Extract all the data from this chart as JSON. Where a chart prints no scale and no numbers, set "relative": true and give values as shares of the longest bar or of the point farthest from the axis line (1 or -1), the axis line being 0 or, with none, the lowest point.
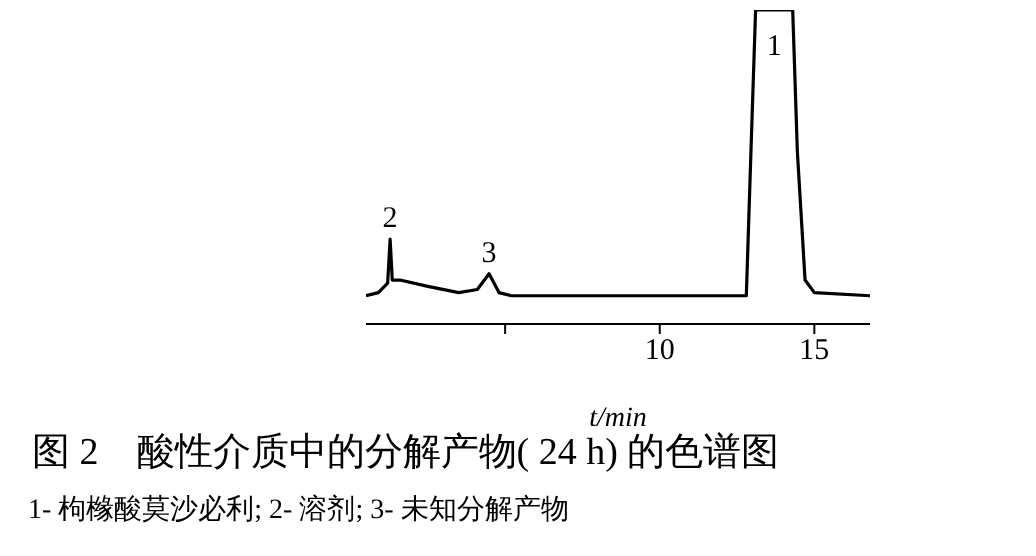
{
  "chart_data": {
    "type": "line",
    "relative": true,
    "title": "图 2　酸性介质中的分解产物( 24 h) 的色谱图",
    "xlabel": "t/min",
    "x": [
      0.5,
      0.9,
      1.2,
      1.28,
      1.35,
      1.6,
      2.5,
      3.5,
      4.1,
      4.48,
      4.8,
      5.2,
      12.8,
      12.95,
      13.1,
      14.3,
      14.45,
      14.7,
      15.0,
      16.8
    ],
    "series": [
      {
        "color": "#000000",
        "values": [
          0.09,
          0.1,
          0.13,
          0.27,
          0.14,
          0.14,
          0.12,
          0.1,
          0.11,
          0.16,
          0.1,
          0.09,
          0.09,
          0.55,
          1,
          1,
          0.55,
          0.14,
          0.1,
          0.09
        ]
      }
    ],
    "xlim": [
      0.5,
      16.8
    ],
    "xticks": [
      {
        "value": 5,
        "label": null
      },
      10,
      15
    ],
    "annotations": [
      {
        "text": "1",
        "x": 13.7,
        "y": 1
      },
      {
        "text": "2",
        "x": 1.28,
        "y": 0.27
      },
      {
        "text": "3",
        "x": 4.48,
        "y": 0.16
      },
      "1- 枸橼酸莫沙必利; 2- 溶剂; 3- 未知分解产物"
    ],
    "grid": false,
    "legend": false,
    "marker": "none",
    "line_style": "solid"
  }
}
